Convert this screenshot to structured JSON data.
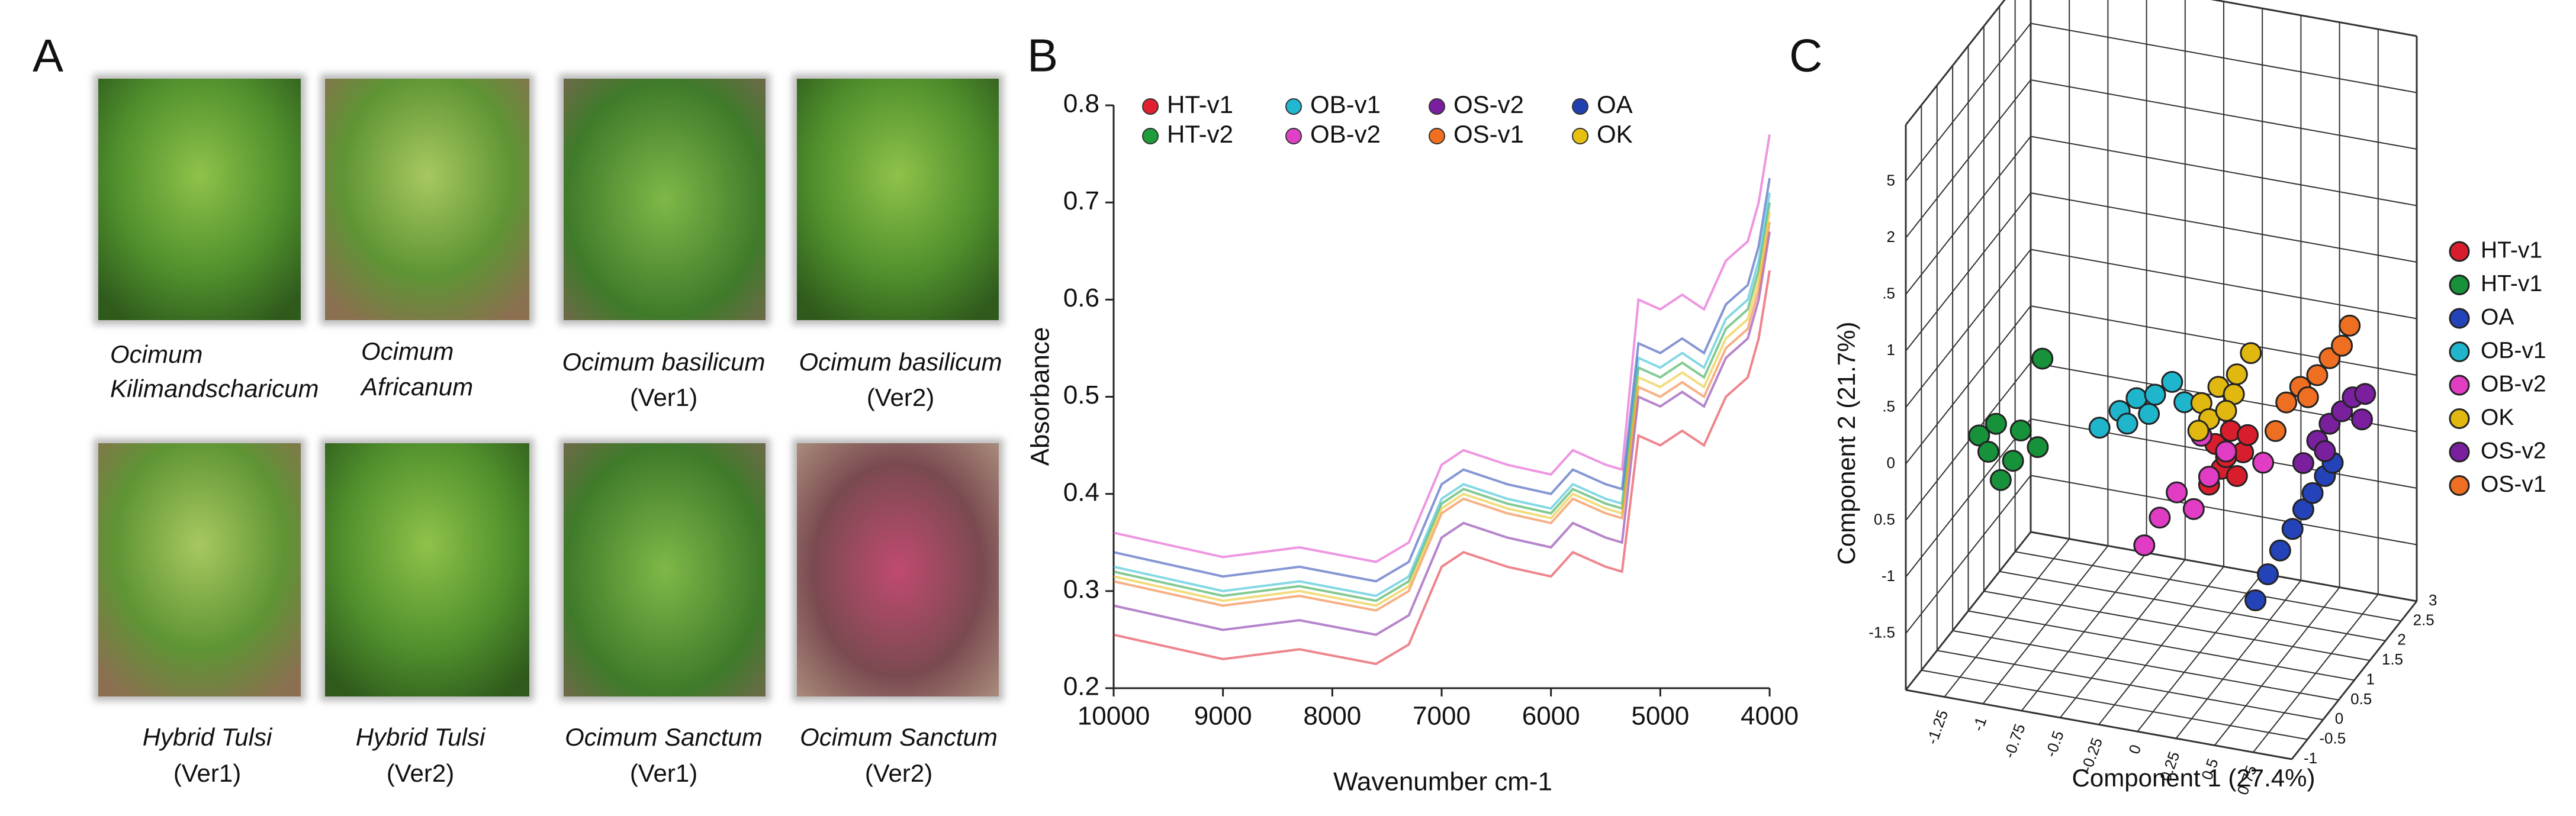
{
  "figure": {
    "panel_labels": [
      "A",
      "B",
      "C"
    ],
    "photos": [
      {
        "caption": [
          "Ocimum",
          "Kilimandscharicum"
        ]
      },
      {
        "caption": [
          "Ocimum",
          "Africanum"
        ]
      },
      {
        "caption": [
          "Ocimum basilicum",
          "(Ver1)"
        ]
      },
      {
        "caption": [
          "Ocimum basilicum",
          "(Ver2)"
        ]
      },
      {
        "caption": [
          "Hybrid Tulsi",
          "(Ver1)"
        ]
      },
      {
        "caption": [
          "Hybrid Tulsi",
          "(Ver2)"
        ]
      },
      {
        "caption": [
          "Ocimum Sanctum",
          "(Ver1)"
        ]
      },
      {
        "caption": [
          "Ocimum Sanctum",
          "(Ver2)"
        ]
      }
    ]
  },
  "chart_data": [
    {
      "type": "line",
      "x_label": "Wavenumber cm-1",
      "y_label": "Absorbance",
      "x": [
        10000,
        9000,
        8300,
        7600,
        7300,
        7000,
        6800,
        6400,
        6000,
        5800,
        5500,
        5350,
        5200,
        5000,
        4800,
        4600,
        4400,
        4200,
        4100,
        4000
      ],
      "xlim": [
        10000,
        4000
      ],
      "xticks": [
        10000,
        9000,
        8000,
        7000,
        6000,
        5000,
        4000
      ],
      "ylim": [
        0.2,
        0.8
      ],
      "yticks": [
        0.2,
        0.3,
        0.4,
        0.5,
        0.6,
        0.7,
        0.8
      ],
      "series": [
        {
          "name": "HT-v1",
          "color": "#e0202f",
          "values": [
            0.255,
            0.23,
            0.24,
            0.225,
            0.245,
            0.325,
            0.34,
            0.325,
            0.315,
            0.34,
            0.325,
            0.32,
            0.46,
            0.45,
            0.465,
            0.45,
            0.5,
            0.52,
            0.56,
            0.63
          ]
        },
        {
          "name": "HT-v2",
          "color": "#1e9e3a",
          "values": [
            0.32,
            0.295,
            0.305,
            0.29,
            0.31,
            0.39,
            0.405,
            0.39,
            0.38,
            0.405,
            0.39,
            0.385,
            0.53,
            0.52,
            0.535,
            0.52,
            0.57,
            0.59,
            0.63,
            0.7
          ]
        },
        {
          "name": "OB-v1",
          "color": "#20b8d0",
          "values": [
            0.325,
            0.3,
            0.31,
            0.295,
            0.315,
            0.395,
            0.41,
            0.395,
            0.385,
            0.41,
            0.395,
            0.39,
            0.54,
            0.53,
            0.545,
            0.53,
            0.58,
            0.6,
            0.64,
            0.71
          ]
        },
        {
          "name": "OB-v2",
          "color": "#e040c8",
          "values": [
            0.36,
            0.335,
            0.345,
            0.33,
            0.35,
            0.43,
            0.445,
            0.43,
            0.42,
            0.445,
            0.43,
            0.425,
            0.6,
            0.59,
            0.605,
            0.59,
            0.64,
            0.66,
            0.7,
            0.77
          ]
        },
        {
          "name": "OS-v2",
          "color": "#7a1fa0",
          "values": [
            0.285,
            0.26,
            0.27,
            0.255,
            0.275,
            0.355,
            0.37,
            0.355,
            0.345,
            0.37,
            0.355,
            0.35,
            0.5,
            0.49,
            0.505,
            0.49,
            0.54,
            0.56,
            0.6,
            0.67
          ]
        },
        {
          "name": "OS-v1",
          "color": "#f07020",
          "values": [
            0.31,
            0.285,
            0.295,
            0.28,
            0.3,
            0.38,
            0.395,
            0.38,
            0.37,
            0.395,
            0.38,
            0.375,
            0.51,
            0.5,
            0.515,
            0.5,
            0.55,
            0.57,
            0.61,
            0.68
          ]
        },
        {
          "name": "OA",
          "color": "#2040b0",
          "values": [
            0.34,
            0.315,
            0.325,
            0.31,
            0.33,
            0.41,
            0.425,
            0.41,
            0.4,
            0.425,
            0.41,
            0.405,
            0.555,
            0.545,
            0.56,
            0.545,
            0.595,
            0.615,
            0.655,
            0.725
          ]
        },
        {
          "name": "OK",
          "color": "#e8c010",
          "values": [
            0.315,
            0.29,
            0.3,
            0.285,
            0.305,
            0.385,
            0.4,
            0.385,
            0.375,
            0.4,
            0.385,
            0.38,
            0.52,
            0.51,
            0.525,
            0.51,
            0.56,
            0.58,
            0.62,
            0.69
          ]
        }
      ]
    },
    {
      "type": "scatter3d",
      "x_label": "Component 1 (27.4%)",
      "y_label": "Component 2 (21.7%)",
      "xlim": [
        -1.5,
        1.0
      ],
      "xticks": [
        -1.25,
        -1,
        -0.75,
        -0.5,
        -0.25,
        0,
        0.25,
        0.5,
        0.75
      ],
      "ylim": [
        -2,
        3
      ],
      "yticks": [
        {
          "value": 2.5,
          "label": "5"
        },
        2,
        {
          "value": 1.5,
          "label": ".5"
        },
        1,
        {
          "value": 0.5,
          "label": ".5"
        },
        0,
        {
          "value": -0.5,
          "label": "0.5"
        },
        -1,
        -1.5
      ],
      "zlim": [
        -1,
        3
      ],
      "zticks": [
        3,
        2.5,
        2,
        1.5,
        1,
        0.5,
        0,
        -0.5,
        -1
      ],
      "series": [
        {
          "name": "HT-v1",
          "color": "#d81e2c",
          "x": [
            0.1,
            0.2,
            0.28,
            0.14,
            0.24,
            0.06,
            0.31,
            0.17
          ],
          "y": [
            -0.13,
            0.01,
            -0.16,
            -0.34,
            -0.38,
            -0.5,
            0.0,
            -0.23
          ],
          "z": [
            1,
            1,
            1,
            1,
            1,
            1,
            1,
            1
          ]
        },
        {
          "name": "HT-v1",
          "color": "#17913a",
          "x": [
            -1.02,
            -1.43,
            -1.32,
            -1.16,
            -1.37,
            -1.21,
            -1.05,
            -1.29
          ],
          "y": [
            0.35,
            -0.43,
            -0.3,
            -0.32,
            -0.56,
            -0.6,
            -0.44,
            -0.79
          ],
          "z": [
            1,
            1,
            1,
            1,
            1,
            1,
            1,
            1
          ]
        },
        {
          "name": "OA",
          "color": "#2443b8",
          "x": [
            0.36,
            0.44,
            0.52,
            0.6,
            0.67,
            0.73,
            0.81,
            0.86
          ],
          "y": [
            -1.45,
            -1.2,
            -0.97,
            -0.76,
            -0.57,
            -0.41,
            -0.24,
            -0.11
          ],
          "z": [
            1,
            1,
            1,
            1,
            1,
            1,
            1,
            1
          ]
        },
        {
          "name": "OB-v1",
          "color": "#1fb5cc",
          "x": [
            -0.65,
            -0.52,
            -0.41,
            -0.29,
            -0.18,
            -0.33,
            -0.1,
            -0.47
          ],
          "y": [
            -0.17,
            0.01,
            0.15,
            0.21,
            0.35,
            0.03,
            0.19,
            -0.09
          ],
          "z": [
            1,
            1,
            1,
            1,
            1,
            1,
            1,
            1
          ]
        },
        {
          "name": "OB-v2",
          "color": "#e03cc4",
          "x": [
            -0.36,
            -0.26,
            -0.15,
            -0.04,
            0.06,
            0.17,
            0.01,
            0.41
          ],
          "y": [
            -1.14,
            -0.87,
            -0.62,
            -0.74,
            -0.43,
            -0.18,
            -0.08,
            -0.22
          ],
          "z": [
            1,
            1,
            1,
            1,
            1,
            1,
            1,
            1
          ]
        },
        {
          "name": "OK",
          "color": "#e0b810",
          "x": [
            0.33,
            0.01,
            0.12,
            0.22,
            0.06,
            0.17,
            -0.01,
            0.24
          ],
          "y": [
            0.73,
            0.21,
            0.38,
            0.34,
            0.08,
            0.18,
            -0.04,
            0.52
          ],
          "z": [
            1,
            1,
            1,
            1,
            1,
            1,
            1,
            1
          ]
        },
        {
          "name": "OS-v2",
          "color": "#7a1f9e",
          "x": [
            0.67,
            0.76,
            0.84,
            0.92,
            0.99,
            1.07,
            0.81,
            1.05
          ],
          "y": [
            -0.16,
            0.06,
            0.23,
            0.36,
            0.5,
            0.55,
            -0.02,
            0.32
          ],
          "z": [
            1,
            1,
            1,
            1,
            1,
            1,
            1,
            1
          ]
        },
        {
          "name": "OS-v1",
          "color": "#ee6e22",
          "x": [
            0.49,
            0.56,
            0.65,
            0.76,
            0.84,
            0.92,
            0.97,
            0.7
          ],
          "y": [
            0.08,
            0.35,
            0.51,
            0.64,
            0.81,
            0.94,
            1.13,
            0.43
          ],
          "z": [
            1,
            1,
            1,
            1,
            1,
            1,
            1,
            1
          ]
        }
      ]
    }
  ]
}
